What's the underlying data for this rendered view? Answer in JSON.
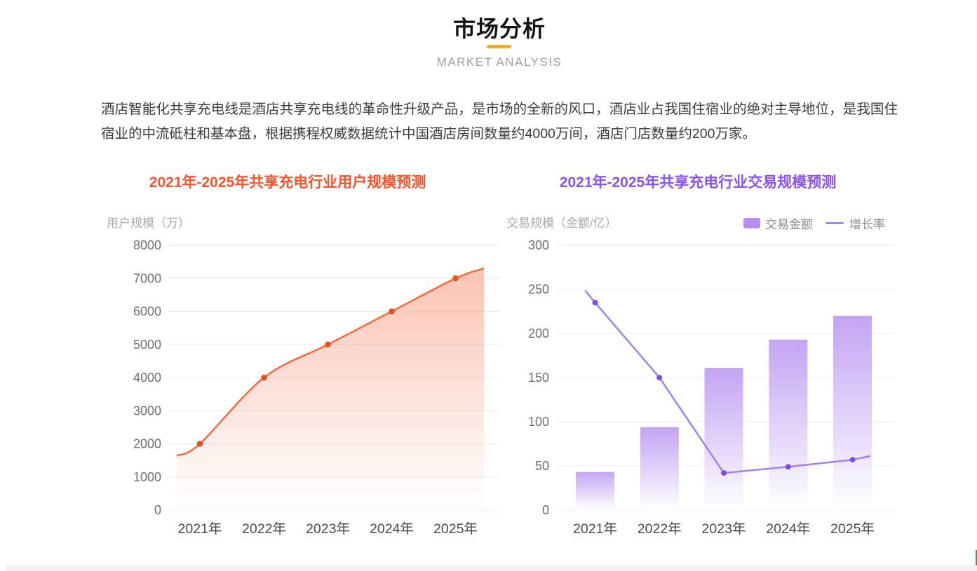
{
  "header": {
    "title": "市场分析",
    "subtitle": "MARKET ANALYSIS",
    "accent_color": "#f7a928"
  },
  "intro": {
    "text": "酒店智能化共享充电线是酒店共享充电线的革命性升级产品，是市场的全新的风口，酒店业占我国住宿业的绝对主导地位，是我国住宿业的中流砥柱和基本盘，根据携程权威数据统计中国酒店房间数量约4000万间，酒店门店数量约200万家。"
  },
  "chart_data": [
    {
      "type": "area",
      "title": "2021年-2025年共享充电行业用户规模预测",
      "title_color": "#f8532a",
      "ylabel": "用户规模（万）",
      "categories": [
        "2021年",
        "2022年",
        "2023年",
        "2024年",
        "2025年"
      ],
      "values": [
        2000,
        4000,
        5000,
        6000,
        7000
      ],
      "curve_edge_values": {
        "left": 1640,
        "right": 7300
      },
      "ylim": [
        0,
        8000
      ],
      "yticks": [
        8000,
        7000,
        6000,
        5000,
        4000,
        3000,
        2000,
        1000,
        0
      ],
      "grid": true,
      "smooth": true,
      "colors": {
        "line": "#f4693e",
        "point": "#e5501f",
        "fill_top": "rgba(244,105,62,0.40)",
        "fill_bottom": "rgba(244,105,62,0)"
      }
    },
    {
      "type": "bar+line",
      "title": "2021年-2025年共享充电行业交易规模预测",
      "title_color": "#8a52f0",
      "ylabel": "交易规模（金额/亿）",
      "categories": [
        "2021年",
        "2022年",
        "2023年",
        "2024年",
        "2025年"
      ],
      "ylim": [
        0,
        300
      ],
      "yticks": [
        300,
        250,
        200,
        150,
        100,
        50,
        0
      ],
      "grid": true,
      "legend_position": "top-right",
      "series": [
        {
          "name": "交易金额",
          "type": "bar",
          "values": [
            43,
            94,
            161,
            193,
            220
          ],
          "colors": {
            "bar_top": "#c3a4f3",
            "bar_bottom": "#ffffff",
            "legend_swatch": "#b48ef2"
          }
        },
        {
          "name": "增长率",
          "type": "line",
          "values": [
            235,
            150,
            42,
            49,
            57
          ],
          "edge_values": {
            "left": 248,
            "right": 61
          },
          "colors": {
            "line": "#a183ef",
            "point": "#7e4fe8"
          }
        }
      ]
    }
  ],
  "decorations": {
    "edge_cursor_color": "#26a94f",
    "next_section_color": "#f1f2f4",
    "gridline_color": "#ececec",
    "y_tick_color": "#6f6f6f",
    "x_label_color": "#4a4a4a"
  }
}
